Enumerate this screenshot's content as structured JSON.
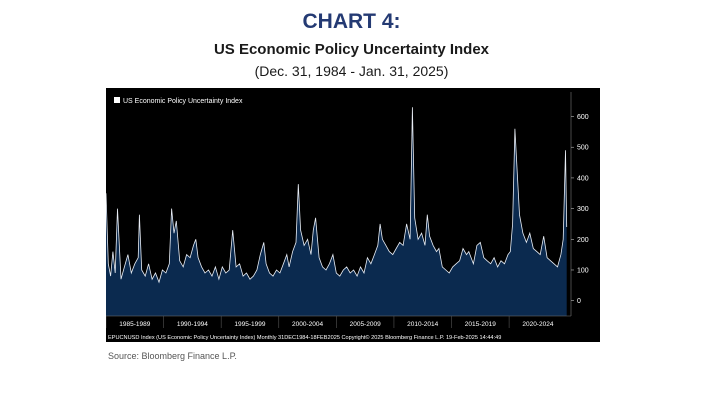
{
  "header": {
    "chart_number": "CHART 4:",
    "title": "US Economic Policy Uncertainty Index",
    "subtitle": "(Dec. 31, 1984 - Jan. 31, 2025)"
  },
  "source": "Source: Bloomberg Finance L.P.",
  "colors": {
    "title": "#243a73",
    "plot_background": "#000000",
    "area_fill": "#0b2a4f",
    "line": "#e8edf5",
    "text_on_dark": "#ffffff"
  },
  "chart_data": {
    "type": "area",
    "legend": [
      "US Economic Policy Uncertainty Index"
    ],
    "legend_position": "top-left",
    "footer": "EPUCNUSD Index (US Economic Policy Uncertainty Index)  Monthly 31DEC1984-18FEB2025  Copyright© 2025 Bloomberg Finance L.P.   19-Feb-2025 14:44:49",
    "x_tick_labels": [
      "1985-1989",
      "1990-1994",
      "1995-1999",
      "2000-2004",
      "2005-2009",
      "2010-2014",
      "2015-2019",
      "2020-2024"
    ],
    "y_ticks": [
      0,
      100,
      200,
      300,
      400,
      500,
      600
    ],
    "ylim": [
      -50,
      680
    ],
    "xlim": [
      1985,
      2025.2
    ],
    "grid": false,
    "series": [
      {
        "values_date_x": [
          1985.0,
          1985.2,
          1985.4,
          1985.6,
          1985.8,
          1986.0,
          1986.3,
          1986.6,
          1986.9,
          1987.2,
          1987.5,
          1987.8,
          1987.9,
          1988.1,
          1988.4,
          1988.7,
          1989.0,
          1989.3,
          1989.6,
          1989.9,
          1990.2,
          1990.5,
          1990.7,
          1990.9,
          1991.1,
          1991.4,
          1991.7,
          1992.0,
          1992.3,
          1992.6,
          1992.8,
          1993.0,
          1993.3,
          1993.6,
          1993.9,
          1994.2,
          1994.5,
          1994.8,
          1995.1,
          1995.4,
          1995.7,
          1996.0,
          1996.3,
          1996.6,
          1996.9,
          1997.2,
          1997.5,
          1997.8,
          1998.1,
          1998.4,
          1998.7,
          1998.9,
          1999.2,
          1999.5,
          1999.8,
          2000.1,
          2000.4,
          2000.7,
          2000.9,
          2001.2,
          2001.5,
          2001.7,
          2001.9,
          2002.2,
          2002.5,
          2002.8,
          2003.0,
          2003.2,
          2003.5,
          2003.8,
          2004.1,
          2004.4,
          2004.7,
          2005.0,
          2005.3,
          2005.6,
          2005.9,
          2006.2,
          2006.5,
          2006.8,
          2007.1,
          2007.4,
          2007.7,
          2008.0,
          2008.3,
          2008.6,
          2008.8,
          2009.0,
          2009.3,
          2009.6,
          2009.9,
          2010.2,
          2010.5,
          2010.8,
          2011.1,
          2011.4,
          2011.6,
          2011.8,
          2012.1,
          2012.4,
          2012.7,
          2012.9,
          2013.1,
          2013.4,
          2013.7,
          2013.9,
          2014.2,
          2014.5,
          2014.8,
          2015.1,
          2015.4,
          2015.7,
          2016.0,
          2016.3,
          2016.5,
          2016.9,
          2017.2,
          2017.5,
          2017.8,
          2018.1,
          2018.4,
          2018.7,
          2019.0,
          2019.3,
          2019.6,
          2019.9,
          2020.1,
          2020.3,
          2020.5,
          2020.7,
          2020.9,
          2021.2,
          2021.5,
          2021.8,
          2022.1,
          2022.4,
          2022.7,
          2023.0,
          2023.3,
          2023.6,
          2023.9,
          2024.2,
          2024.5,
          2024.7,
          2024.9,
          2025.0
        ],
        "values": [
          350,
          120,
          80,
          160,
          90,
          300,
          70,
          110,
          150,
          90,
          120,
          140,
          280,
          100,
          80,
          120,
          70,
          90,
          60,
          100,
          90,
          120,
          300,
          220,
          260,
          130,
          110,
          150,
          140,
          180,
          200,
          140,
          110,
          90,
          100,
          80,
          110,
          70,
          110,
          90,
          100,
          230,
          110,
          120,
          80,
          90,
          70,
          80,
          100,
          150,
          190,
          120,
          90,
          80,
          100,
          90,
          120,
          150,
          110,
          160,
          190,
          380,
          230,
          180,
          200,
          150,
          230,
          270,
          140,
          110,
          100,
          120,
          150,
          90,
          80,
          100,
          110,
          90,
          100,
          80,
          110,
          90,
          140,
          120,
          150,
          180,
          250,
          200,
          180,
          160,
          150,
          170,
          190,
          180,
          250,
          200,
          630,
          270,
          200,
          220,
          180,
          280,
          210,
          180,
          160,
          170,
          110,
          100,
          90,
          110,
          120,
          130,
          170,
          150,
          160,
          120,
          180,
          190,
          140,
          130,
          120,
          140,
          110,
          130,
          120,
          150,
          160,
          250,
          560,
          420,
          280,
          220,
          190,
          220,
          170,
          160,
          150,
          210,
          140,
          130,
          120,
          110,
          150,
          200,
          490,
          240
        ]
      }
    ]
  }
}
